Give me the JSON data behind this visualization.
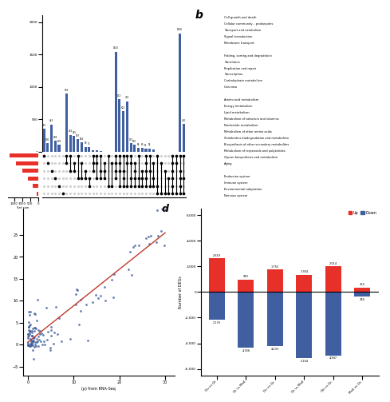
{
  "panel_b_categories": [
    "Cell growth and death",
    "Cellular community – prokaryotes",
    "Transport and catabolism",
    "Signal transduction",
    "Membrane transport",
    "",
    "Folding, sorting and degradation",
    "Translation",
    "Replication and repair",
    "Transcription",
    "Carbohydrate metabolism",
    "Overview",
    "",
    "Amino acid metabolism",
    "Energy metabolism",
    "Lipid metabolism",
    "Metabolism of cofactors and vitamins",
    "Nucleotide metabolism",
    "Metabolism of other amino acids",
    "Xenobiotics biodegradation and metabolism",
    "Biosynthesis of other secondary metabolites",
    "Metabolism of terpenoids and polyketides",
    "Glycan biosynthesis and metabolism",
    "Aging",
    "",
    "Endocrine system",
    "Immune system",
    "Environmental adaptation",
    "Nervous system"
  ],
  "panel_d_groups": [
    "Du vs Qt",
    "Qt vs Mo4",
    "Du vs Qc",
    "Qt vs Mo4",
    "Ob vs Qc",
    "Mo4 vs Qc"
  ],
  "panel_d_up": [
    2619,
    978,
    1755,
    1354,
    2014,
    364
  ],
  "panel_d_down": [
    -2176,
    -4356,
    -4233,
    -5164,
    -4947,
    -348
  ],
  "panel_d_ylabel": "Number of DEGs",
  "panel_d_up_color": "#e8302a",
  "panel_d_down_color": "#3f5fa0",
  "panel_d_legend_up": "Up",
  "panel_d_legend_down": "Down",
  "upset_bar_values": [
    355,
    130,
    423,
    168,
    108,
    5,
    894,
    262,
    245,
    197,
    146,
    80,
    75,
    23,
    21,
    13,
    6,
    6,
    6,
    1543,
    813,
    622,
    781,
    137,
    110,
    58,
    60,
    51,
    52,
    34,
    1,
    5,
    3,
    2,
    2,
    1,
    1826,
    430
  ],
  "upset_set_sizes": [
    1800,
    1400,
    1000,
    650,
    320,
    90
  ],
  "scatter_color": "#3f5fa0",
  "scatter_line_color": "#c0392b",
  "bg_color": "#ffffff",
  "upset_bar_color": "#3f5fa0",
  "upset_set_bar_color": "#e8302a"
}
